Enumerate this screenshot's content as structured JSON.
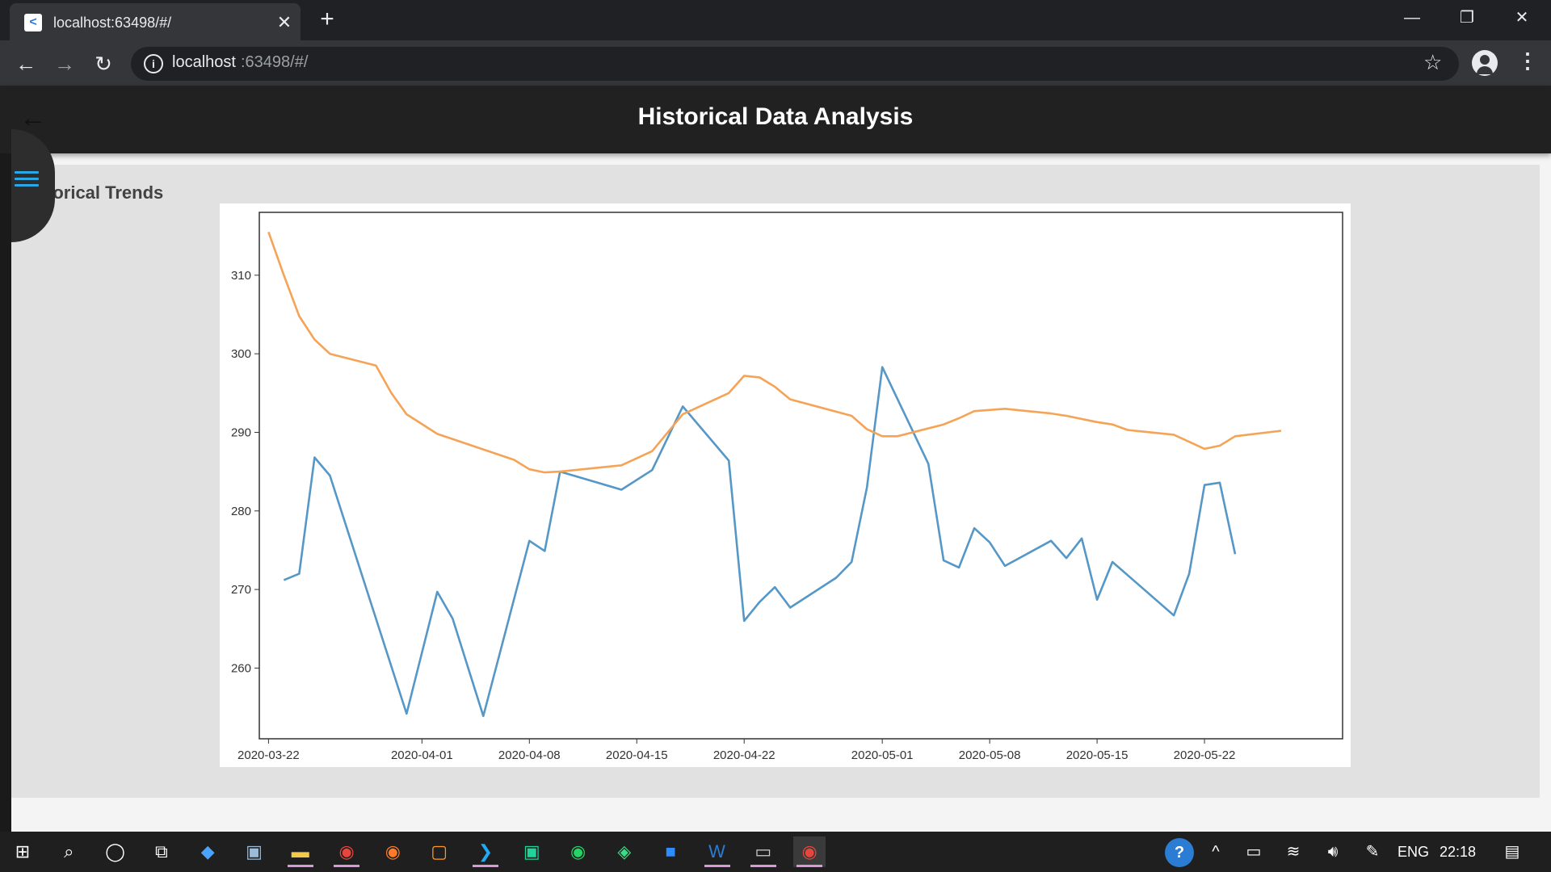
{
  "browser": {
    "tab_title": "localhost:63498/#/",
    "favicon_glyph": "<",
    "url_host": "localhost",
    "url_rest": ":63498/#/",
    "icons": {
      "back": "arrow-left-icon",
      "forward": "arrow-right-icon",
      "reload": "reload-icon",
      "info": "info-icon",
      "bookmark": "star-icon",
      "profile": "profile-icon",
      "menu": "more-vertical-icon"
    }
  },
  "app": {
    "title": "Historical Data Analysis",
    "section_title": "torical Trends",
    "accent_color": "#29a8e8"
  },
  "chart_data": {
    "type": "line",
    "x_tick_labels": [
      "2020-03-22",
      "2020-04-01",
      "2020-04-08",
      "2020-04-15",
      "2020-04-22",
      "2020-05-01",
      "2020-05-08",
      "2020-05-15",
      "2020-05-22"
    ],
    "y_ticks": [
      260,
      270,
      280,
      290,
      300,
      310
    ],
    "ylim": [
      251,
      318
    ],
    "xlim": [
      "2020-03-22",
      "2020-05-31"
    ],
    "grid": false,
    "legend": "none",
    "series": [
      {
        "color": "#5597c6",
        "points": [
          [
            "2020-03-23",
            271.2
          ],
          [
            "2020-03-24",
            272
          ],
          [
            "2020-03-25",
            286.8
          ],
          [
            "2020-03-26",
            284.5
          ],
          [
            "2020-03-31",
            254.2
          ],
          [
            "2020-04-02",
            269.7
          ],
          [
            "2020-04-03",
            266.3
          ],
          [
            "2020-04-05",
            253.9
          ],
          [
            "2020-04-08",
            276.2
          ],
          [
            "2020-04-09",
            274.9
          ],
          [
            "2020-04-10",
            285
          ],
          [
            "2020-04-14",
            282.7
          ],
          [
            "2020-04-16",
            285.2
          ],
          [
            "2020-04-18",
            293.3
          ],
          [
            "2020-04-21",
            286.4
          ],
          [
            "2020-04-22",
            266
          ],
          [
            "2020-04-23",
            268.4
          ],
          [
            "2020-04-24",
            270.3
          ],
          [
            "2020-04-25",
            267.7
          ],
          [
            "2020-04-28",
            271.5
          ],
          [
            "2020-04-29",
            273.5
          ],
          [
            "2020-04-30",
            283
          ],
          [
            "2020-05-01",
            298.3
          ],
          [
            "2020-05-04",
            286
          ],
          [
            "2020-05-05",
            273.7
          ],
          [
            "2020-05-06",
            272.8
          ],
          [
            "2020-05-07",
            277.8
          ],
          [
            "2020-05-08",
            276
          ],
          [
            "2020-05-09",
            273
          ],
          [
            "2020-05-12",
            276.2
          ],
          [
            "2020-05-13",
            274
          ],
          [
            "2020-05-14",
            276.5
          ],
          [
            "2020-05-15",
            268.7
          ],
          [
            "2020-05-16",
            273.5
          ],
          [
            "2020-05-20",
            266.7
          ],
          [
            "2020-05-21",
            272
          ],
          [
            "2020-05-22",
            283.3
          ],
          [
            "2020-05-23",
            283.6
          ],
          [
            "2020-05-24",
            274.5
          ]
        ]
      },
      {
        "color": "#f5a356",
        "points": [
          [
            "2020-03-22",
            315.5
          ],
          [
            "2020-03-23",
            310
          ],
          [
            "2020-03-24",
            304.8
          ],
          [
            "2020-03-25",
            301.8
          ],
          [
            "2020-03-26",
            300
          ],
          [
            "2020-03-29",
            298.5
          ],
          [
            "2020-03-30",
            295
          ],
          [
            "2020-03-31",
            292.3
          ],
          [
            "2020-04-02",
            289.8
          ],
          [
            "2020-04-07",
            286.5
          ],
          [
            "2020-04-08",
            285.3
          ],
          [
            "2020-04-09",
            284.9
          ],
          [
            "2020-04-10",
            285
          ],
          [
            "2020-04-14",
            285.8
          ],
          [
            "2020-04-16",
            287.6
          ],
          [
            "2020-04-18",
            292.3
          ],
          [
            "2020-04-21",
            295
          ],
          [
            "2020-04-22",
            297.2
          ],
          [
            "2020-04-23",
            297
          ],
          [
            "2020-04-24",
            295.8
          ],
          [
            "2020-04-25",
            294.2
          ],
          [
            "2020-04-29",
            292.1
          ],
          [
            "2020-04-30",
            290.4
          ],
          [
            "2020-05-01",
            289.5
          ],
          [
            "2020-05-02",
            289.5
          ],
          [
            "2020-05-05",
            291
          ],
          [
            "2020-05-06",
            291.8
          ],
          [
            "2020-05-07",
            292.7
          ],
          [
            "2020-05-09",
            293
          ],
          [
            "2020-05-12",
            292.4
          ],
          [
            "2020-05-13",
            292.1
          ],
          [
            "2020-05-15",
            291.3
          ],
          [
            "2020-05-16",
            291
          ],
          [
            "2020-05-17",
            290.3
          ],
          [
            "2020-05-20",
            289.7
          ],
          [
            "2020-05-22",
            287.9
          ],
          [
            "2020-05-23",
            288.3
          ],
          [
            "2020-05-24",
            289.5
          ],
          [
            "2020-05-27",
            290.2
          ]
        ]
      }
    ]
  },
  "taskbar": {
    "icons": [
      "windows-start-icon",
      "search-icon",
      "cortana-icon",
      "task-view-icon",
      "blue-app-icon",
      "network-app-icon",
      "file-explorer-icon",
      "chrome-icon",
      "firefox-icon",
      "office-app-icon",
      "vscode-icon",
      "pycharm-icon",
      "whatsapp-icon",
      "android-studio-icon",
      "zoom-icon",
      "word-icon",
      "terminal-icon",
      "chrome-active-icon"
    ],
    "tray_language": "ENG",
    "tray_time": "22:18"
  }
}
